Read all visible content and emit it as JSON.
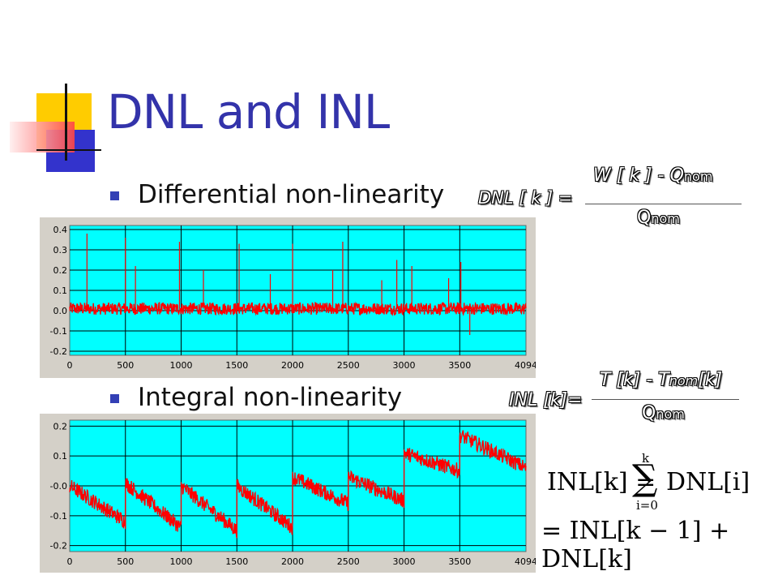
{
  "title": "DNL and INL",
  "bullets": [
    "Differential non-linearity",
    "Integral non-linearity"
  ],
  "formulas": {
    "dnl": {
      "lhs": "DNL [ k ] =",
      "numerator": "W [ k ] - Q",
      "numerator_sub": "nom",
      "denominator": "Q",
      "denominator_sub": "nom"
    },
    "inl": {
      "lhs": "INL [k]=",
      "numerator": "T [k] - T",
      "numerator_sub": "nom",
      "numerator_tail": "[k]",
      "denominator": "Q",
      "denominator_sub": "nom"
    },
    "sum": {
      "line1_lhs": "INL[k] =",
      "sum_top": "k",
      "sum_bottom": "i=0",
      "line1_rhs": "DNL[i]",
      "line2": "= INL[k − 1] + DNL[k]"
    }
  },
  "colors": {
    "title": "#3333aa",
    "plot_bg": "#00ffff",
    "trace": "#ff0000",
    "grid": "#000000",
    "frame": "#d4d0c8"
  },
  "chart_data": [
    {
      "type": "line",
      "title": "",
      "xlabel": "",
      "ylabel": "",
      "xlim": [
        0,
        4094
      ],
      "ylim": [
        -0.22,
        0.42
      ],
      "xticks": [
        "0",
        "500",
        "1000",
        "1500",
        "2000",
        "2500",
        "3000",
        "3500",
        "4094"
      ],
      "yticks": [
        "0.4",
        "0.3",
        "0.2",
        "0.1",
        "0.0",
        "-0.1",
        "-0.2"
      ],
      "series": [
        {
          "x": [
            0,
            155,
            500,
            590,
            985,
            1200,
            1520,
            1800,
            2000,
            2360,
            2450,
            2800,
            2935,
            3070,
            3400,
            3510,
            3590,
            4094
          ],
          "y": [
            0.01,
            0.38,
            0.36,
            0.22,
            0.34,
            0.2,
            0.33,
            0.18,
            0.33,
            0.2,
            0.34,
            0.15,
            0.25,
            0.22,
            0.16,
            0.24,
            -0.12,
            0.01
          ],
          "baseline": 0.01,
          "noise_amplitude": 0.03
        }
      ],
      "grid": true
    },
    {
      "type": "line",
      "title": "",
      "xlabel": "",
      "ylabel": "",
      "xlim": [
        0,
        4094
      ],
      "ylim": [
        -0.22,
        0.22
      ],
      "xticks": [
        "0",
        "500",
        "1000",
        "1500",
        "2000",
        "2500",
        "3000",
        "3500",
        "4094"
      ],
      "yticks": [
        "0.2",
        "0.1",
        "-0.0",
        "-0.1",
        "-0.2"
      ],
      "series": [
        {
          "segment_boundaries": [
            0,
            500,
            1000,
            1500,
            2000,
            2500,
            3000,
            3500,
            4094
          ],
          "segment_start_values": [
            0.0,
            0.01,
            0.0,
            0.0,
            0.03,
            0.03,
            0.11,
            0.17
          ],
          "segment_end_values": [
            -0.12,
            -0.14,
            -0.15,
            -0.14,
            -0.06,
            -0.05,
            0.05,
            0.06
          ],
          "noise_amplitude": 0.025
        }
      ],
      "grid": true
    }
  ]
}
